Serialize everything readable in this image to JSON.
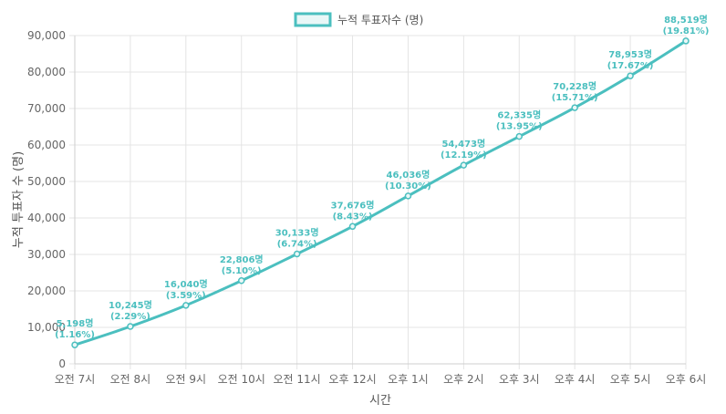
{
  "chart_data": {
    "type": "line",
    "categories": [
      "오전 7시",
      "오전 8시",
      "오전 9시",
      "오전 10시",
      "오전 11시",
      "오후 12시",
      "오후 1시",
      "오후 2시",
      "오후 3시",
      "오후 4시",
      "오후 5시",
      "오후 6시"
    ],
    "series": [
      {
        "name": "누적 투표자수 (명)",
        "color": "#4bbfbf",
        "values": [
          5198,
          10245,
          16040,
          22806,
          30133,
          37676,
          46036,
          54473,
          62335,
          70228,
          78953,
          88519
        ],
        "labels": [
          [
            "5,198명",
            "(1.16%)"
          ],
          [
            "10,245명",
            "(2.29%)"
          ],
          [
            "16,040명",
            "(3.59%)"
          ],
          [
            "22,806명",
            "(5.10%)"
          ],
          [
            "30,133명",
            "(6.74%)"
          ],
          [
            "37,676명",
            "(8.43%)"
          ],
          [
            "46,036명",
            "(10.30%)"
          ],
          [
            "54,473명",
            "(12.19%)"
          ],
          [
            "62,335명",
            "(13.95%)"
          ],
          [
            "70,228명",
            "(15.71%)"
          ],
          [
            "78,953명",
            "(17.67%)"
          ],
          [
            "88,519명",
            "(19.81%)"
          ]
        ]
      }
    ],
    "xlabel": "시간",
    "ylabel": "누적 투표자 수 (명)",
    "ylim": [
      0,
      90000
    ],
    "yticks": [
      0,
      10000,
      20000,
      30000,
      40000,
      50000,
      60000,
      70000,
      80000,
      90000
    ],
    "ytick_labels": [
      "0",
      "10,000",
      "20,000",
      "30,000",
      "40,000",
      "50,000",
      "60,000",
      "70,000",
      "80,000",
      "90,000"
    ],
    "grid": true,
    "legend_position": "top-center"
  }
}
